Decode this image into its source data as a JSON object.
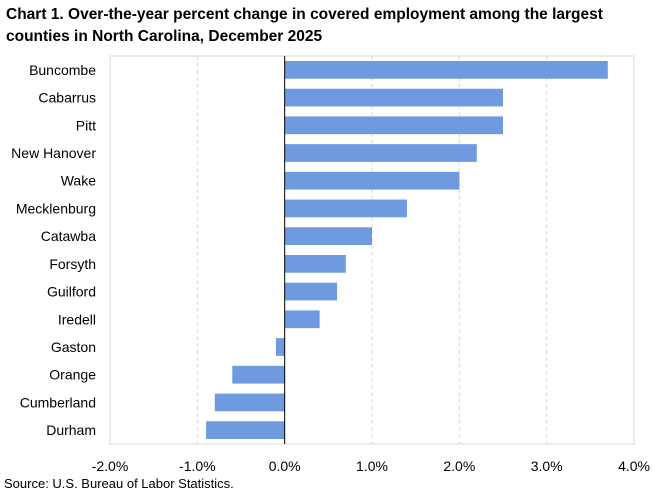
{
  "chart_data": {
    "type": "bar",
    "orientation": "horizontal",
    "title": "Chart 1. Over-the-year percent change in covered employment among the largest counties in North Carolina, December 2025",
    "categories": [
      "Buncombe",
      "Cabarrus",
      "Pitt",
      "New Hanover",
      "Wake",
      "Mecklenburg",
      "Catawba",
      "Forsyth",
      "Guilford",
      "Iredell",
      "Gaston",
      "Orange",
      "Cumberland",
      "Durham"
    ],
    "values": [
      3.7,
      2.5,
      2.5,
      2.2,
      2.0,
      1.4,
      1.0,
      0.7,
      0.6,
      0.4,
      -0.1,
      -0.6,
      -0.8,
      -0.9
    ],
    "xlim": [
      -2.0,
      4.0
    ],
    "xticks": [
      -2.0,
      -1.0,
      0.0,
      1.0,
      2.0,
      3.0,
      4.0
    ],
    "xtick_labels": [
      "-2.0%",
      "-1.0%",
      "0.0%",
      "1.0%",
      "2.0%",
      "3.0%",
      "4.0%"
    ],
    "xlabel": "",
    "ylabel": "",
    "grid": "vertical dashed",
    "legend": "none",
    "bar_color": "#6f9ae0",
    "source": "Source: U.S. Bureau of Labor Statistics."
  }
}
